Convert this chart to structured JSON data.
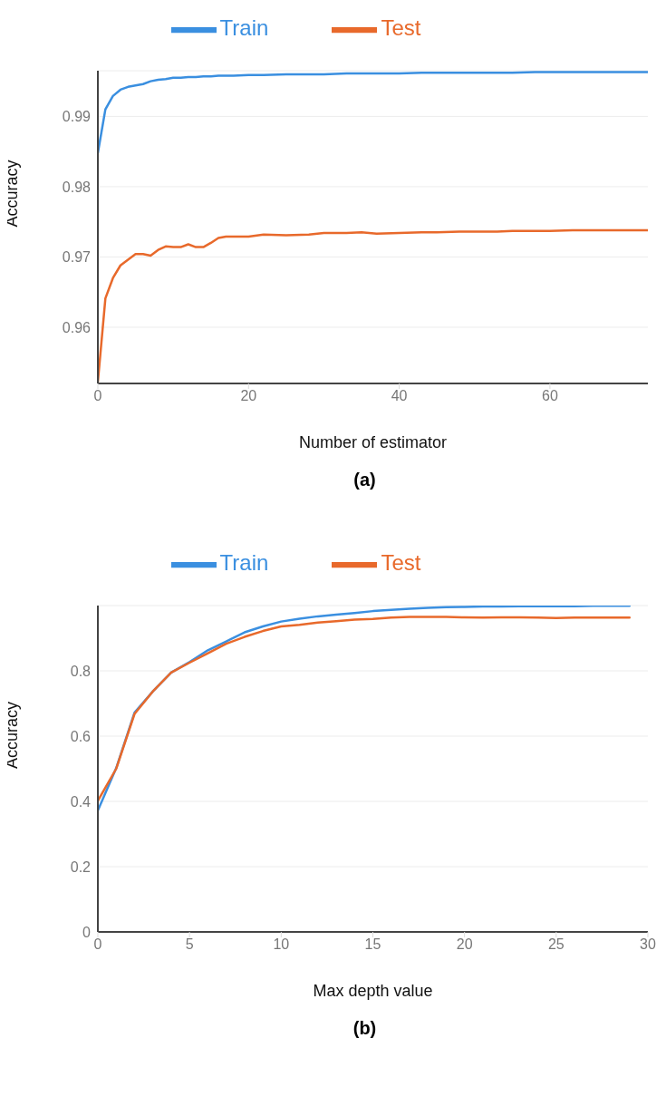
{
  "chart_data": [
    {
      "type": "line",
      "xlabel": "Number of estimator",
      "ylabel": "Accuracy",
      "annotations": [
        "(a)"
      ],
      "legend": "top",
      "grid": "y",
      "marker": "none",
      "line_style": "solid",
      "x": [
        0,
        1,
        2,
        3,
        4,
        5,
        6,
        7,
        8,
        9,
        10,
        11,
        12,
        13,
        14,
        15,
        16,
        17,
        18,
        20,
        22,
        25,
        28,
        30,
        33,
        35,
        37,
        40,
        43,
        45,
        48,
        50,
        53,
        55,
        58,
        60,
        63,
        65,
        68,
        70,
        73
      ],
      "xlim": [
        0,
        73
      ],
      "xticks": [
        0,
        20,
        40,
        60
      ],
      "ylim": [
        0.952,
        0.9965
      ],
      "yticks": [
        0.96,
        0.97,
        0.98,
        0.99
      ],
      "series": [
        {
          "name": "Train",
          "color": "#3a8fe0",
          "values": [
            0.9848,
            0.991,
            0.9929,
            0.9938,
            0.9942,
            0.9944,
            0.9946,
            0.995,
            0.9952,
            0.9953,
            0.9955,
            0.9955,
            0.9956,
            0.9956,
            0.9957,
            0.9957,
            0.9958,
            0.9958,
            0.9958,
            0.9959,
            0.9959,
            0.996,
            0.996,
            0.996,
            0.9961,
            0.9961,
            0.9961,
            0.9961,
            0.9962,
            0.9962,
            0.9962,
            0.9962,
            0.9962,
            0.9962,
            0.9963,
            0.9963,
            0.9963,
            0.9963,
            0.9963,
            0.9963,
            0.9963
          ]
        },
        {
          "name": "Test",
          "color": "#e8692b",
          "values": [
            0.9522,
            0.9641,
            0.967,
            0.9688,
            0.9696,
            0.9704,
            0.9704,
            0.9702,
            0.971,
            0.9715,
            0.9714,
            0.9714,
            0.9718,
            0.9714,
            0.9714,
            0.972,
            0.9727,
            0.9729,
            0.9729,
            0.9729,
            0.9732,
            0.9731,
            0.9732,
            0.9734,
            0.9734,
            0.9735,
            0.9733,
            0.9734,
            0.9735,
            0.9735,
            0.9736,
            0.9736,
            0.9736,
            0.9737,
            0.9737,
            0.9737,
            0.9738,
            0.9738,
            0.9738,
            0.9738,
            0.9738
          ]
        }
      ]
    },
    {
      "type": "line",
      "xlabel": "Max depth value",
      "ylabel": "Accuracy",
      "annotations": [
        "(b)"
      ],
      "legend": "top",
      "grid": "y",
      "marker": "none",
      "line_style": "solid",
      "x": [
        0,
        1,
        2,
        3,
        4,
        5,
        6,
        7,
        8,
        9,
        10,
        11,
        12,
        13,
        14,
        15,
        16,
        17,
        18,
        19,
        20,
        21,
        22,
        23,
        24,
        25,
        26,
        27,
        28,
        29
      ],
      "xlim": [
        0,
        30
      ],
      "xticks": [
        0,
        5,
        10,
        15,
        20,
        25,
        30
      ],
      "ylim": [
        0,
        1
      ],
      "yticks": [
        0,
        0.2,
        0.4,
        0.6,
        0.8
      ],
      "series": [
        {
          "name": "Train",
          "color": "#3a8fe0",
          "values": [
            0.372,
            0.502,
            0.672,
            0.737,
            0.795,
            0.827,
            0.863,
            0.89,
            0.918,
            0.936,
            0.951,
            0.96,
            0.967,
            0.972,
            0.977,
            0.983,
            0.987,
            0.99,
            0.993,
            0.995,
            0.996,
            0.997,
            0.997,
            0.998,
            0.998,
            0.998,
            0.998,
            0.999,
            0.999,
            0.999
          ]
        },
        {
          "name": "Test",
          "color": "#e8692b",
          "values": [
            0.402,
            0.5,
            0.668,
            0.737,
            0.795,
            0.825,
            0.854,
            0.883,
            0.904,
            0.922,
            0.936,
            0.941,
            0.948,
            0.952,
            0.957,
            0.959,
            0.963,
            0.965,
            0.965,
            0.965,
            0.964,
            0.963,
            0.964,
            0.964,
            0.963,
            0.962,
            0.963,
            0.963,
            0.963,
            0.963
          ]
        }
      ]
    }
  ]
}
